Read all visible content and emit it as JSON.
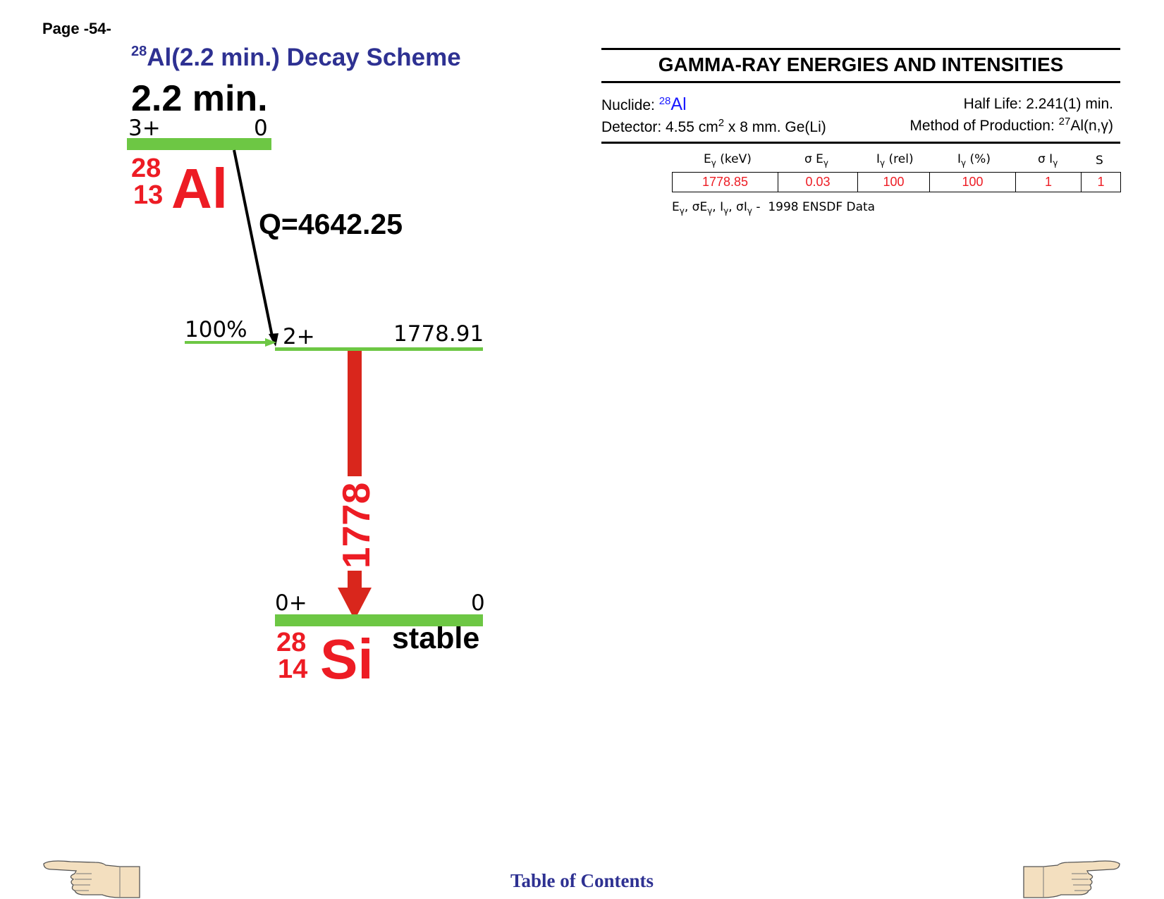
{
  "page": {
    "number_label": "Page -54-"
  },
  "scheme": {
    "title_mass": "28",
    "title_text": "Al(2.2 min.) Decay Scheme",
    "halflife": "2.2 min.",
    "parent": {
      "spin": "3+",
      "energy": "0",
      "mass": "28",
      "z": "13",
      "symbol": "Al"
    },
    "q_value": "Q=4642.25",
    "branch": {
      "percent": "100%",
      "spin": "2+",
      "energy": "1778.91"
    },
    "gamma": {
      "label": "1778"
    },
    "daughter": {
      "spin": "0+",
      "energy": "0",
      "mass": "28",
      "z": "14",
      "symbol": "Si",
      "status": "stable"
    },
    "colors": {
      "level": "#6dc744",
      "gamma": "#d9261c",
      "nuclide": "#ed1c24",
      "title": "#2e3192"
    }
  },
  "gamma_table": {
    "title": "GAMMA-RAY ENERGIES AND INTENSITIES",
    "nuclide_label": "Nuclide:",
    "nuclide_mass": "28",
    "nuclide_symbol": "Al",
    "half_life": "Half Life: 2.241(1) min.",
    "detector_prefix": "Detector: 4.55 cm",
    "detector_exp": "2",
    "detector_suffix": " x 8 mm. Ge(Li)",
    "production_prefix": "Method of Production: ",
    "production_mass": "27",
    "production_reaction": "Al(n,γ)",
    "headers": {
      "energy": "E",
      "energy_unit": " (keV)",
      "sigma_energy": "σ E",
      "i_rel": "I",
      "i_rel_unit": " (rel)",
      "i_pct": "I",
      "i_pct_unit": " (%)",
      "sigma_i": "σ I",
      "s": "S",
      "gamma_sub": "γ"
    },
    "rows": [
      {
        "energy": "1778.85",
        "sigma_energy": "0.03",
        "i_rel": "100",
        "i_pct": "100",
        "sigma_i": "1",
        "s": "1"
      }
    ],
    "source_note": "1998 ENSDF Data"
  },
  "footer": {
    "toc_label": "Table of Contents",
    "icons": [
      "pointing-hand-left-icon",
      "pointing-hand-right-icon"
    ]
  }
}
